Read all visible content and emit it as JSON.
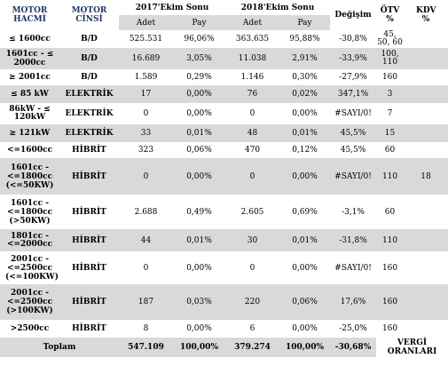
{
  "headers": {
    "motor_hacmi": "MOTOR HACMİ",
    "motor_cinsi": "MOTOR CİNSİ",
    "period_2017": "2017'Ekim Sonu",
    "period_2018": "2018'Ekim Sonu",
    "degisim": "Değişim",
    "otv": "ÖTV %",
    "kdv": "KDV %",
    "adet_2017": "Adet",
    "pay_2017": "Pay",
    "adet_2018": "Adet",
    "pay_2018": "Pay"
  },
  "rows": [
    {
      "hacim": "≤ 1600cc",
      "cins": "B/D",
      "adet17": "525.531",
      "pay17": "96,06%",
      "adet18": "363.635",
      "pay18": "95,88%",
      "degisim": "-30,8%",
      "otv": "45, 50, 60"
    },
    {
      "hacim": "1601cc - ≤ 2000cc",
      "cins": "B/D",
      "adet17": "16.689",
      "pay17": "3,05%",
      "adet18": "11.038",
      "pay18": "2,91%",
      "degisim": "-33,9%",
      "otv": "100, 110"
    },
    {
      "hacim": "≥ 2001cc",
      "cins": "B/D",
      "adet17": "1.589",
      "pay17": "0,29%",
      "adet18": "1.146",
      "pay18": "0,30%",
      "degisim": "-27,9%",
      "otv": "160"
    },
    {
      "hacim": "≤ 85 kW",
      "cins": "ELEKTRİK",
      "adet17": "17",
      "pay17": "0,00%",
      "adet18": "76",
      "pay18": "0,02%",
      "degisim": "347,1%",
      "otv": "3"
    },
    {
      "hacim": "86kW - ≤ 120kW",
      "cins": "ELEKTRİK",
      "adet17": "0",
      "pay17": "0,00%",
      "adet18": "0",
      "pay18": "0,00%",
      "degisim": "#SAYI/0!",
      "otv": "7"
    },
    {
      "hacim": "≥ 121kW",
      "cins": "ELEKTRİK",
      "adet17": "33",
      "pay17": "0,01%",
      "adet18": "48",
      "pay18": "0,01%",
      "degisim": "45,5%",
      "otv": "15"
    },
    {
      "hacim": "<=1600cc",
      "cins": "HİBRİT",
      "adet17": "323",
      "pay17": "0,06%",
      "adet18": "470",
      "pay18": "0,12%",
      "degisim": "45,5%",
      "otv": "60"
    },
    {
      "hacim": "1601cc - <=1800cc (<=50KW)",
      "cins": "HİBRİT",
      "adet17": "0",
      "pay17": "0,00%",
      "adet18": "0",
      "pay18": "0,00%",
      "degisim": "#SAYI/0!",
      "otv": "110"
    },
    {
      "hacim": "1601cc - <=1800cc (>50KW)",
      "cins": "HİBRİT",
      "adet17": "2.688",
      "pay17": "0,49%",
      "adet18": "2.605",
      "pay18": "0,69%",
      "degisim": "-3,1%",
      "otv": "60"
    },
    {
      "hacim": "1801cc - <=2000cc",
      "cins": "HİBRİT",
      "adet17": "44",
      "pay17": "0,01%",
      "adet18": "30",
      "pay18": "0,01%",
      "degisim": "-31,8%",
      "otv": "110"
    },
    {
      "hacim": "2001cc - <=2500cc (<=100KW)",
      "cins": "HİBRİT",
      "adet17": "0",
      "pay17": "0,00%",
      "adet18": "0",
      "pay18": "0,00%",
      "degisim": "#SAYI/0!",
      "otv": "160"
    },
    {
      "hacim": "2001cc - <=2500cc (>100KW)",
      "cins": "HİBRİT",
      "adet17": "187",
      "pay17": "0,03%",
      "adet18": "220",
      "pay18": "0,06%",
      "degisim": "17,6%",
      "otv": "160"
    },
    {
      "hacim": ">2500cc",
      "cins": "HİBRİT",
      "adet17": "8",
      "pay17": "0,00%",
      "adet18": "6",
      "pay18": "0,00%",
      "degisim": "-25,0%",
      "otv": "160"
    }
  ],
  "kdv_value": "18",
  "total": {
    "label": "Toplam",
    "adet17": "547.109",
    "pay17": "100,00%",
    "adet18": "379.274",
    "pay18": "100,00%",
    "degisim": "-30,68%",
    "vergi": "VERGİ ORANLARI"
  }
}
